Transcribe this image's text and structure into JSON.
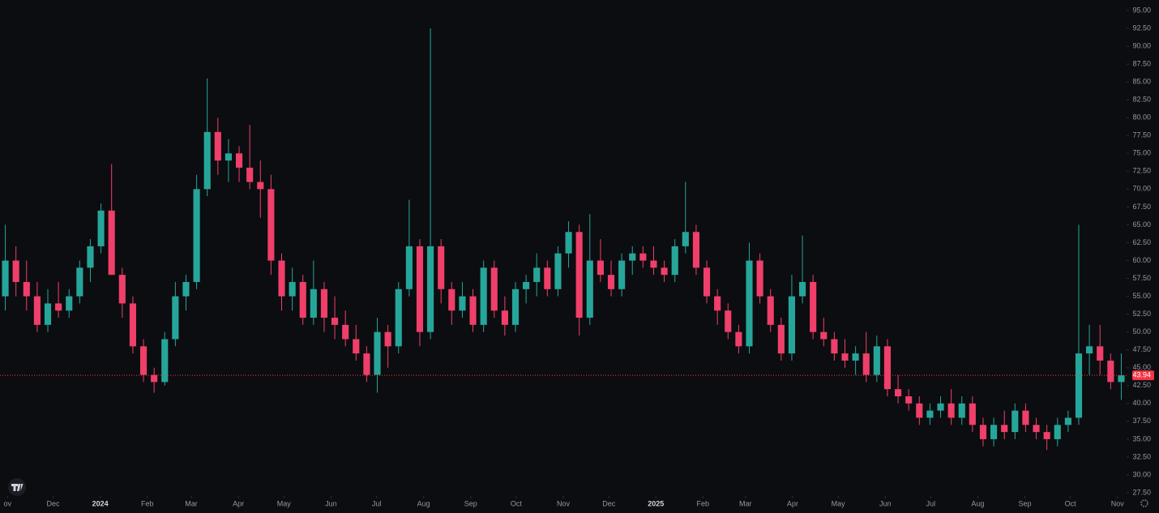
{
  "chart_data": {
    "type": "candlestick",
    "up_color": "#26a69a",
    "down_color": "#ef3f6a",
    "last_price": 43.94,
    "last_price_color": "#f23645",
    "xlim": [
      -0.5,
      105.5
    ],
    "ylim": [
      27.05,
      96.47
    ],
    "xticks": [
      {
        "value": 0.21,
        "label": "ov"
      },
      {
        "value": 4.5,
        "label": "Dec"
      },
      {
        "value": 8.93,
        "label": "2024"
      },
      {
        "value": 13.36,
        "label": "Feb"
      },
      {
        "value": 17.5,
        "label": "Mar"
      },
      {
        "value": 21.93,
        "label": "Apr"
      },
      {
        "value": 26.21,
        "label": "May"
      },
      {
        "value": 30.64,
        "label": "Jun"
      },
      {
        "value": 34.93,
        "label": "Jul"
      },
      {
        "value": 39.36,
        "label": "Aug"
      },
      {
        "value": 43.79,
        "label": "Sep"
      },
      {
        "value": 48.07,
        "label": "Oct"
      },
      {
        "value": 52.5,
        "label": "Nov"
      },
      {
        "value": 56.79,
        "label": "Dec"
      },
      {
        "value": 61.21,
        "label": "2025"
      },
      {
        "value": 65.64,
        "label": "Feb"
      },
      {
        "value": 69.64,
        "label": "Mar"
      },
      {
        "value": 74.07,
        "label": "Apr"
      },
      {
        "value": 78.36,
        "label": "May"
      },
      {
        "value": 82.79,
        "label": "Jun"
      },
      {
        "value": 87.07,
        "label": "Jul"
      },
      {
        "value": 91.5,
        "label": "Aug"
      },
      {
        "value": 95.93,
        "label": "Sep"
      },
      {
        "value": 100.21,
        "label": "Oct"
      },
      {
        "value": 104.64,
        "label": "Nov"
      }
    ],
    "yticks": [
      {
        "value": 27.5,
        "label": "27.50"
      },
      {
        "value": 30,
        "label": "30.00"
      },
      {
        "value": 32.5,
        "label": "32.50"
      },
      {
        "value": 35,
        "label": "35.00"
      },
      {
        "value": 37.5,
        "label": "37.50"
      },
      {
        "value": 40,
        "label": "40.00"
      },
      {
        "value": 42.5,
        "label": "42.50"
      },
      {
        "value": 45,
        "label": "45.00"
      },
      {
        "value": 47.5,
        "label": "47.50"
      },
      {
        "value": 50,
        "label": "50.00"
      },
      {
        "value": 52.5,
        "label": "52.50"
      },
      {
        "value": 55,
        "label": "55.00"
      },
      {
        "value": 57.5,
        "label": "57.50"
      },
      {
        "value": 60,
        "label": "60.00"
      },
      {
        "value": 62.5,
        "label": "62.50"
      },
      {
        "value": 65,
        "label": "65.00"
      },
      {
        "value": 67.5,
        "label": "67.50"
      },
      {
        "value": 70,
        "label": "70.00"
      },
      {
        "value": 72.5,
        "label": "72.50"
      },
      {
        "value": 75,
        "label": "75.00"
      },
      {
        "value": 77.5,
        "label": "77.50"
      },
      {
        "value": 80,
        "label": "80.00"
      },
      {
        "value": 82.5,
        "label": "82.50"
      },
      {
        "value": 85,
        "label": "85.00"
      },
      {
        "value": 87.5,
        "label": "87.50"
      },
      {
        "value": 90,
        "label": "90.00"
      },
      {
        "value": 92.5,
        "label": "92.50"
      },
      {
        "value": 95,
        "label": "95.00"
      }
    ],
    "open": [
      55,
      60,
      57,
      55,
      51,
      54,
      53,
      55,
      59,
      62,
      67,
      58,
      54,
      48,
      44,
      43,
      49,
      55,
      57,
      70,
      78,
      74,
      75,
      73,
      71,
      70,
      60,
      55,
      57,
      52,
      56,
      52,
      51,
      49,
      47,
      44,
      50,
      48,
      56,
      62,
      50,
      62,
      56,
      53,
      55,
      51,
      59,
      53,
      51,
      56,
      57,
      59,
      56,
      61,
      64,
      52,
      60,
      58,
      56,
      60,
      61,
      60,
      59,
      58,
      62,
      64,
      59,
      55,
      53,
      50,
      48,
      60,
      55,
      51,
      47,
      55,
      57,
      50,
      49,
      47,
      46,
      47,
      44,
      48,
      42,
      41,
      40,
      38,
      39,
      40,
      38,
      40,
      37,
      35,
      37,
      36,
      39,
      37,
      36,
      35,
      37,
      38,
      47,
      48,
      46,
      43
    ],
    "high": [
      65,
      62,
      60,
      57,
      56,
      57,
      56,
      60,
      63,
      68,
      73.5,
      59,
      55,
      49,
      45,
      50,
      57,
      58,
      72,
      85.5,
      80,
      77,
      76,
      79,
      74,
      72,
      61,
      59,
      58,
      60,
      57,
      55,
      53,
      51,
      48,
      52,
      51,
      57,
      68.5,
      63,
      92.5,
      63,
      57,
      57,
      56,
      60,
      60,
      55,
      57,
      58,
      61,
      60,
      62,
      65.5,
      65,
      66.5,
      63,
      60,
      61,
      62,
      62,
      62,
      60,
      63,
      71,
      65,
      60,
      56,
      54,
      51,
      62.5,
      61,
      56,
      52,
      58,
      63.5,
      58,
      52,
      50,
      49,
      48,
      50,
      49.5,
      49,
      44,
      42,
      41,
      40,
      41,
      42,
      41,
      41,
      38,
      38,
      39,
      40,
      40,
      38,
      37,
      38,
      39,
      65,
      51,
      51,
      47,
      47
    ],
    "low": [
      53,
      55,
      53,
      50,
      50,
      52,
      52,
      54,
      57,
      61,
      58,
      52,
      47,
      43,
      41.5,
      42.5,
      48,
      53,
      56,
      69,
      72,
      71,
      71,
      70,
      66,
      58,
      53,
      53,
      51,
      51,
      50,
      49,
      48,
      46,
      43,
      41.5,
      45,
      47,
      55,
      48,
      49,
      54,
      51,
      52,
      50,
      50,
      52,
      49.5,
      50,
      54,
      55,
      55,
      55,
      59,
      49.5,
      51,
      57,
      55,
      55,
      58,
      59,
      58,
      57,
      57,
      61,
      58,
      54,
      51,
      49,
      47,
      47,
      54,
      50,
      46,
      46,
      54,
      49,
      48,
      46,
      45,
      44,
      43,
      43,
      41,
      40,
      39,
      37,
      37,
      38,
      37,
      37,
      36,
      34,
      34,
      35,
      35,
      36,
      35,
      33.5,
      34,
      36,
      37,
      44,
      44,
      42,
      40.5
    ],
    "close": [
      60,
      57,
      55,
      51,
      54,
      53,
      55,
      59,
      62,
      67,
      58,
      54,
      48,
      44,
      43,
      49,
      55,
      57,
      70,
      78,
      74,
      75,
      73,
      71,
      70,
      60,
      55,
      57,
      52,
      56,
      52,
      51,
      49,
      47,
      44,
      50,
      48,
      56,
      62,
      50,
      62,
      56,
      53,
      55,
      51,
      59,
      53,
      51,
      56,
      57,
      59,
      56,
      61,
      64,
      52,
      60,
      58,
      56,
      60,
      61,
      60,
      59,
      58,
      62,
      64,
      59,
      55,
      53,
      50,
      48,
      60,
      55,
      51,
      47,
      55,
      57,
      50,
      49,
      47,
      46,
      47,
      44,
      48,
      42,
      41,
      40,
      38,
      39,
      40,
      38,
      40,
      37,
      35,
      37,
      36,
      39,
      37,
      36,
      35,
      37,
      38,
      47,
      48,
      46,
      43,
      43.94
    ]
  }
}
